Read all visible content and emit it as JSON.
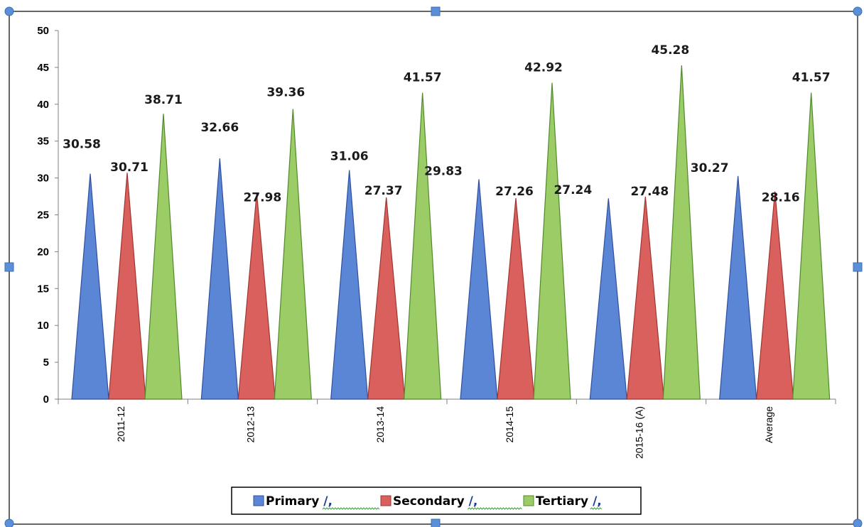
{
  "colors": {
    "primary": "#5b86d6",
    "secondary": "#d9605d",
    "tertiary": "#9ccc65",
    "primary_edge": "#2e4f9e",
    "secondary_edge": "#a03530",
    "tertiary_edge": "#4f8a2c",
    "handle": "#5b8fd8",
    "frame": "#333333"
  },
  "chart_data": {
    "type": "bar",
    "bar_shape": "triangle",
    "categories": [
      "2011-12",
      "2012-13",
      "2013-14",
      "2014-15",
      "2015-16 (A)",
      "Average"
    ],
    "series": [
      {
        "name": "Primary",
        "values": [
          30.58,
          32.66,
          31.06,
          29.83,
          27.24,
          30.27
        ]
      },
      {
        "name": "Secondary",
        "values": [
          30.71,
          27.98,
          27.37,
          27.26,
          27.48,
          28.16
        ]
      },
      {
        "name": "Tertiary",
        "values": [
          38.71,
          39.36,
          41.57,
          42.92,
          45.28,
          41.57
        ]
      }
    ],
    "yticks": [
      "0",
      "5",
      "10",
      "15",
      "20",
      "25",
      "30",
      "35",
      "40",
      "45",
      "50"
    ],
    "ylim": [
      0,
      50
    ],
    "title": "",
    "xlabel": "",
    "ylabel": "",
    "grid": false,
    "legend_position": "bottom",
    "legend": [
      {
        "label": "Primary",
        "suffix": "/,"
      },
      {
        "label": "Secondary",
        "suffix": "/,"
      },
      {
        "label": "Tertiary",
        "suffix": "/,"
      }
    ]
  }
}
